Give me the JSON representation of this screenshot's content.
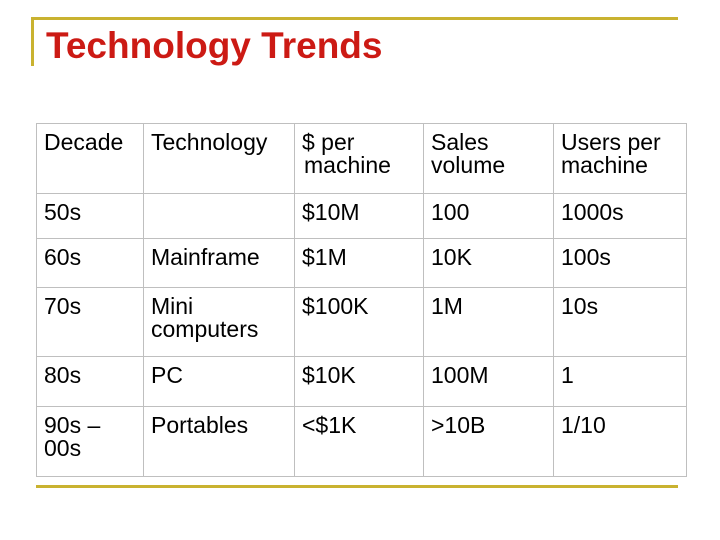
{
  "slide": {
    "title": "Technology Trends",
    "accent_color": "#c9b230",
    "title_color": "#cc1a14"
  },
  "table": {
    "headers": {
      "decade": "Decade",
      "technology": "Technology",
      "price_line1": "$ per",
      "price_line2": "machine",
      "sales_line1": "Sales",
      "sales_line2": "volume",
      "users_line1": "Users per",
      "users_line2": "machine"
    },
    "rows": [
      {
        "decade_line1": "50s",
        "decade_line2": "",
        "technology_line1": "",
        "technology_line2": "",
        "price": "$10M",
        "sales": "100",
        "users": "1000s"
      },
      {
        "decade_line1": "60s",
        "decade_line2": "",
        "technology_line1": "Mainframe",
        "technology_line2": "",
        "price": "$1M",
        "sales": "10K",
        "users": "100s"
      },
      {
        "decade_line1": "70s",
        "decade_line2": "",
        "technology_line1": "Mini",
        "technology_line2": "computers",
        "price": "$100K",
        "sales": "1M",
        "users": "10s"
      },
      {
        "decade_line1": "80s",
        "decade_line2": "",
        "technology_line1": "PC",
        "technology_line2": "",
        "price": "$10K",
        "sales": "100M",
        "users": "1"
      },
      {
        "decade_line1": "90s –",
        "decade_line2": "00s",
        "technology_line1": "Portables",
        "technology_line2": "",
        "price": "<$1K",
        "sales": ">10B",
        "users": "1/10"
      }
    ]
  }
}
